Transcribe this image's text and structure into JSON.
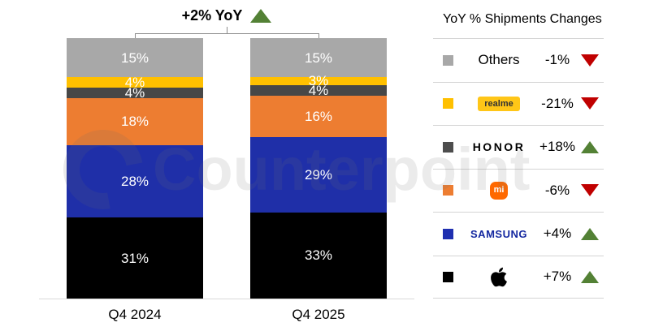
{
  "header": {
    "growth_label": "+2% YoY",
    "trend": "up"
  },
  "chart_data": {
    "type": "bar",
    "stacked": true,
    "title": "",
    "categories": [
      "Q4 2024",
      "Q4 2025"
    ],
    "series": [
      {
        "name": "Apple",
        "color": "#000000",
        "values": [
          31,
          33
        ]
      },
      {
        "name": "Samsung",
        "color": "#1f2fa8",
        "values": [
          28,
          29
        ]
      },
      {
        "name": "Xiaomi",
        "color": "#ed7d31",
        "values": [
          18,
          16
        ]
      },
      {
        "name": "HONOR",
        "color": "#474747",
        "values": [
          4,
          4
        ]
      },
      {
        "name": "realme",
        "color": "#ffc000",
        "values": [
          4,
          3
        ]
      },
      {
        "name": "Others",
        "color": "#a8a8a8",
        "values": [
          15,
          15
        ]
      }
    ],
    "value_suffix": "%",
    "ylim": [
      0,
      100
    ],
    "grid": false,
    "legend_position": "right",
    "total_change_label": "+2% YoY"
  },
  "legend": {
    "title": "YoY % Shipments Changes",
    "rows": [
      {
        "brand": "Others",
        "logo_text": "Others",
        "change": "-1%",
        "direction": "down",
        "swatch": "#a8a8a8"
      },
      {
        "brand": "realme",
        "logo_text": "realme",
        "change": "-21%",
        "direction": "down",
        "swatch": "#ffc000"
      },
      {
        "brand": "HONOR",
        "logo_text": "HONOR",
        "change": "+18%",
        "direction": "up",
        "swatch": "#4d4d4d"
      },
      {
        "brand": "Xiaomi",
        "logo_text": "mi",
        "change": "-6%",
        "direction": "down",
        "swatch": "#ed7d31"
      },
      {
        "brand": "Samsung",
        "logo_text": "SAMSUNG",
        "change": "+4%",
        "direction": "up",
        "swatch": "#1f2fb0"
      },
      {
        "brand": "Apple",
        "logo_text": "",
        "change": "+7%",
        "direction": "up",
        "swatch": "#000000"
      }
    ]
  },
  "watermark": {
    "text": "Counterpoint"
  },
  "colors": {
    "up": "#538135",
    "down": "#c00000",
    "axis": "#d9d9d9"
  }
}
